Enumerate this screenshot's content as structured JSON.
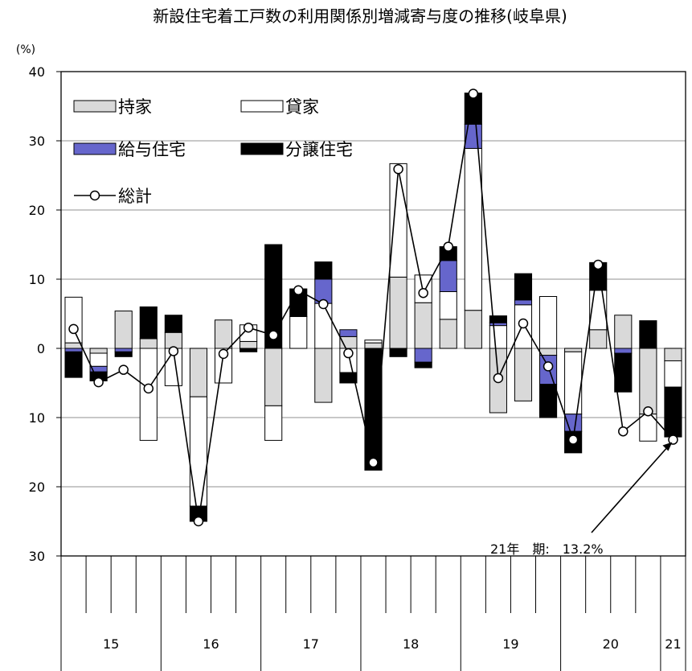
{
  "chart_data": {
    "type": "bar",
    "stacked": true,
    "title": "新設住宅着工戸数の利用関係別増減寄与度の推移(岐阜県)",
    "ylabel": "(%)",
    "xlabel": "",
    "ylim": [
      -30,
      40
    ],
    "y_ticks": [
      40,
      30,
      20,
      10,
      0,
      -10,
      -20,
      -30
    ],
    "y_tick_labels": [
      "40",
      "30",
      "20",
      "10",
      "0",
      "10",
      "20",
      "30"
    ],
    "grid": true,
    "legend_position": "top-left",
    "year_groups": [
      {
        "label": "15",
        "count": 4
      },
      {
        "label": "16",
        "count": 4
      },
      {
        "label": "17",
        "count": 4
      },
      {
        "label": "18",
        "count": 4
      },
      {
        "label": "19",
        "count": 4
      },
      {
        "label": "20",
        "count": 4
      },
      {
        "label": "21",
        "count": 1
      }
    ],
    "series": [
      {
        "key": "mochiie",
        "name": "持家",
        "kind": "bar",
        "color": "#d9d9d9",
        "values": [
          0.8,
          -0.7,
          5.4,
          1.4,
          2.3,
          -7.0,
          4.1,
          1.0,
          -8.3,
          0.0,
          -7.8,
          1.7,
          0.8,
          10.3,
          6.6,
          4.2,
          5.5,
          -9.3,
          -7.6,
          -1.0,
          -0.5,
          2.7,
          4.8,
          -9.5,
          -1.8
        ]
      },
      {
        "key": "kashiya",
        "name": "貸家",
        "kind": "bar",
        "color": "#ffffff",
        "values": [
          6.6,
          -1.9,
          0.0,
          -13.3,
          -5.4,
          -15.8,
          -5.0,
          2.4,
          -5.0,
          4.6,
          6.5,
          -3.5,
          0.4,
          16.4,
          4.0,
          4.0,
          23.4,
          3.3,
          6.3,
          7.5,
          -9.0,
          5.7,
          0.0,
          -3.9,
          -3.8
        ]
      },
      {
        "key": "kyuyo",
        "name": "給与住宅",
        "kind": "bar",
        "color": "#6666cc",
        "values": [
          -0.5,
          -0.8,
          -0.5,
          0.0,
          0.0,
          0.0,
          0.0,
          0.0,
          0.0,
          0.0,
          3.5,
          1.0,
          0.0,
          0.0,
          -2.0,
          4.5,
          3.5,
          0.4,
          0.7,
          -4.2,
          -2.5,
          0.0,
          -0.7,
          0.0,
          0.0
        ]
      },
      {
        "key": "bunjo",
        "name": "分譲住宅",
        "kind": "bar",
        "color": "#000000",
        "values": [
          -3.7,
          -1.3,
          -0.7,
          4.6,
          2.5,
          -2.2,
          0.0,
          -0.5,
          15.0,
          4.0,
          2.5,
          -1.5,
          -17.6,
          -1.2,
          -0.8,
          2.0,
          4.5,
          1.0,
          3.8,
          -4.8,
          -3.1,
          4.0,
          -5.6,
          4.0,
          -7.2
        ]
      },
      {
        "key": "total",
        "name": "総計",
        "kind": "line",
        "color": "#000000",
        "values": [
          2.8,
          -4.9,
          -3.1,
          -5.8,
          -0.4,
          -25.0,
          -0.8,
          3.0,
          1.9,
          8.4,
          6.4,
          -0.7,
          -16.5,
          25.9,
          8.0,
          14.7,
          36.8,
          -4.3,
          3.6,
          -2.6,
          -13.2,
          12.1,
          -12.0,
          -9.1,
          -13.2
        ]
      }
    ],
    "annotation": {
      "text": "21年　期:　13.2%",
      "point_index": 24,
      "value": -13.2
    }
  }
}
